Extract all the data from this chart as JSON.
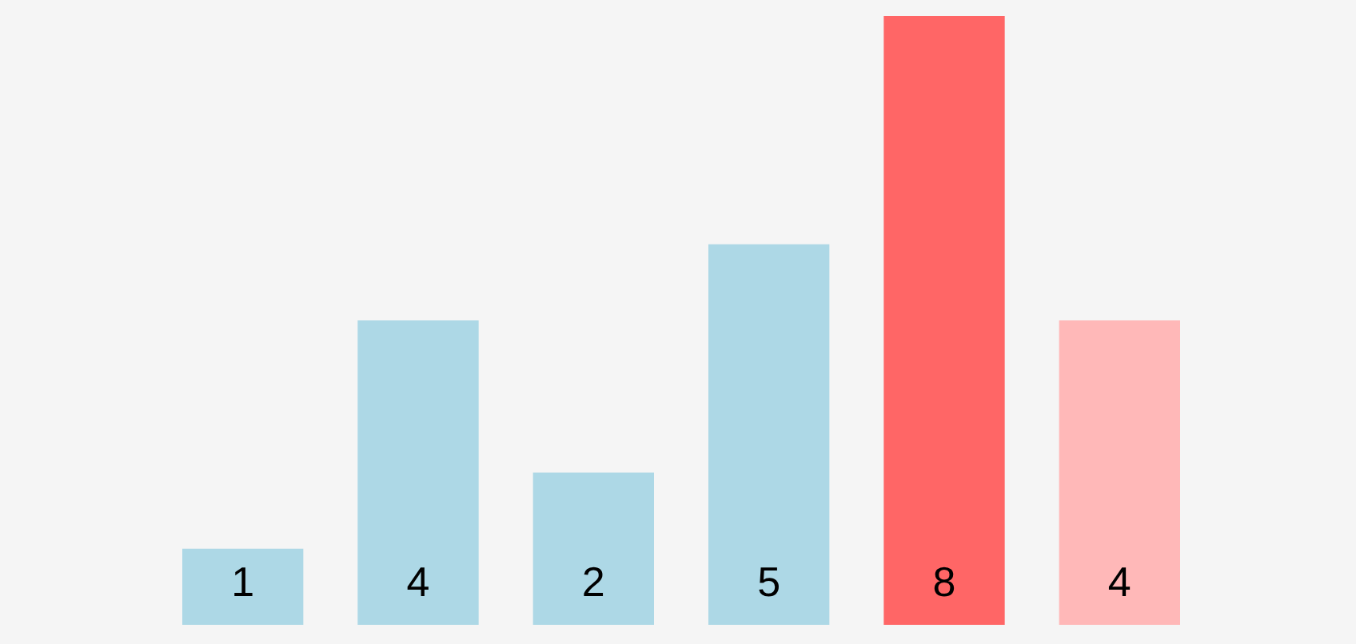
{
  "chart_data": {
    "type": "bar",
    "categories": [
      null,
      null,
      null,
      null,
      null,
      null
    ],
    "values": [
      1,
      4,
      2,
      5,
      8,
      4
    ],
    "colors": [
      "#add8e6",
      "#add8e6",
      "#add8e6",
      "#add8e6",
      "#ff6666",
      "#ffb8b8"
    ],
    "data_labels": true,
    "legend": false,
    "tick_labels": false
  }
}
